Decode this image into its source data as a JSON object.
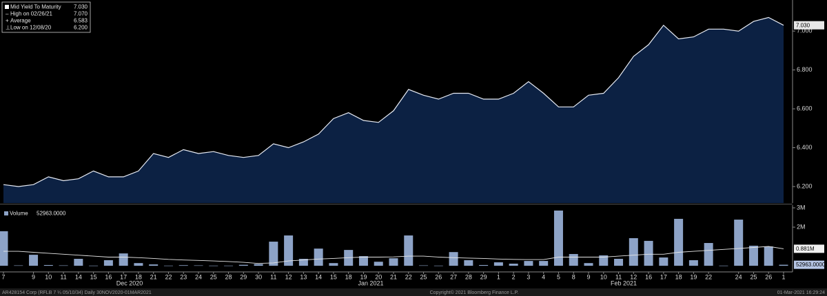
{
  "chart_data": [
    {
      "type": "area",
      "series": [
        {
          "name": "Mid Yield To Maturity",
          "color": "#0c2143",
          "line_color": "#e8ecf5",
          "values": [
            6.21,
            6.2,
            6.21,
            6.25,
            6.23,
            6.24,
            6.28,
            6.25,
            6.25,
            6.28,
            6.37,
            6.35,
            6.39,
            6.37,
            6.38,
            6.36,
            6.35,
            6.36,
            6.42,
            6.4,
            6.43,
            6.47,
            6.55,
            6.58,
            6.54,
            6.53,
            6.59,
            6.7,
            6.67,
            6.65,
            6.68,
            6.68,
            6.65,
            6.65,
            6.68,
            6.74,
            6.68,
            6.61,
            6.61,
            6.67,
            6.68,
            6.76,
            6.87,
            6.93,
            7.03,
            6.96,
            6.97,
            7.01,
            7.01,
            7.0,
            7.05,
            7.07,
            7.03
          ],
          "value_labels": [
            null,
            null,
            null,
            null,
            null,
            null,
            null,
            null,
            null,
            null,
            null,
            null,
            null,
            null,
            null,
            null,
            null,
            null,
            null,
            null,
            null,
            null,
            null,
            null,
            null,
            null,
            null,
            null,
            null,
            null,
            null,
            null,
            null,
            null,
            null,
            null,
            null,
            null,
            null,
            null,
            null,
            null,
            null,
            null,
            null,
            null,
            null,
            null,
            null,
            null,
            null,
            null,
            "7.030"
          ]
        }
      ],
      "legend": [
        {
          "name": "High on 02/26/21",
          "value": "7.070"
        },
        {
          "name": "Average",
          "value": "6.583"
        },
        {
          "name": "Low on 12/08/20",
          "value": "6.200"
        }
      ],
      "ylim": [
        6.115,
        7.16
      ],
      "yticks": [
        {
          "value": 6.2,
          "label": "6.200"
        },
        {
          "value": 6.4,
          "label": "6.400"
        },
        {
          "value": 6.6,
          "label": "6.600"
        },
        {
          "value": 6.8,
          "label": "6.800"
        },
        {
          "value": 7.0,
          "label": "7.000"
        }
      ]
    },
    {
      "type": "bar",
      "categories": [
        "7",
        null,
        "9",
        "10",
        "11",
        "14",
        "15",
        "16",
        "17",
        "18",
        "21",
        "22",
        "23",
        "24",
        "25",
        "28",
        "29",
        "30",
        "11",
        "12",
        "13",
        "14",
        "15",
        "18",
        "19",
        "20",
        "21",
        "22",
        "25",
        "26",
        "27",
        "28",
        "29",
        "1",
        "2",
        "3",
        "4",
        "5",
        "8",
        "9",
        "10",
        "11",
        "12",
        "16",
        "17",
        "18",
        "19",
        "22",
        null,
        "24",
        "25",
        "26",
        "1"
      ],
      "month_labels": [
        "Dec 2020",
        "Jan 2021",
        "Feb 2021"
      ],
      "series": [
        {
          "name": "Volume",
          "color": "#8da3c7",
          "values": [
            1790000,
            20000,
            570000,
            40000,
            20000,
            360000,
            10000,
            290000,
            640000,
            140000,
            70000,
            10000,
            30000,
            20000,
            10000,
            10000,
            50000,
            90000,
            1250000,
            1570000,
            360000,
            890000,
            140000,
            820000,
            500000,
            210000,
            390000,
            1570000,
            20000,
            10000,
            710000,
            290000,
            40000,
            180000,
            110000,
            250000,
            250000,
            2860000,
            610000,
            140000,
            540000,
            360000,
            1430000,
            1290000,
            430000,
            2430000,
            290000,
            1180000,
            10000,
            2390000,
            1040000,
            1000000,
            52963
          ],
          "value_labels": [
            null,
            null,
            null,
            null,
            null,
            null,
            null,
            null,
            null,
            null,
            null,
            null,
            null,
            null,
            null,
            null,
            null,
            null,
            null,
            null,
            null,
            null,
            null,
            null,
            null,
            null,
            null,
            null,
            null,
            null,
            null,
            null,
            null,
            null,
            null,
            null,
            null,
            null,
            null,
            null,
            null,
            null,
            null,
            null,
            null,
            null,
            null,
            null,
            null,
            null,
            null,
            null,
            "52963.0000"
          ]
        },
        {
          "type": "line",
          "color": "#e8e8e8",
          "values": [
            750000,
            750000,
            700000,
            650000,
            600000,
            550000,
            500000,
            450000,
            450000,
            420000,
            380000,
            330000,
            300000,
            280000,
            250000,
            220000,
            180000,
            120000,
            150000,
            250000,
            300000,
            350000,
            380000,
            420000,
            450000,
            450000,
            460000,
            500000,
            500000,
            450000,
            420000,
            400000,
            380000,
            350000,
            330000,
            320000,
            320000,
            450000,
            450000,
            450000,
            450000,
            500000,
            550000,
            600000,
            600000,
            700000,
            750000,
            800000,
            850000,
            900000,
            950000,
            1000000,
            881000
          ],
          "value_labels": [
            null,
            null,
            null,
            null,
            null,
            null,
            null,
            null,
            null,
            null,
            null,
            null,
            null,
            null,
            null,
            null,
            null,
            null,
            null,
            null,
            null,
            null,
            null,
            null,
            null,
            null,
            null,
            null,
            null,
            null,
            null,
            null,
            null,
            null,
            null,
            null,
            null,
            null,
            null,
            null,
            null,
            null,
            null,
            null,
            null,
            null,
            null,
            null,
            null,
            null,
            null,
            null,
            "0.881M"
          ]
        }
      ],
      "ylim": [
        -210000,
        3140000
      ],
      "yticks": [
        {
          "value": 2000000,
          "label": "2M"
        },
        {
          "value": 3000000,
          "label": "3M"
        }
      ]
    }
  ],
  "footer": {
    "left": "AR428154 Corp (RFLB 7 ¼ 05/10/34)  Daily 30NOV2020-01MAR2021",
    "center": "Copyright© 2021 Bloomberg Finance L.P.",
    "right": "01-Mar-2021 16:29:24"
  }
}
